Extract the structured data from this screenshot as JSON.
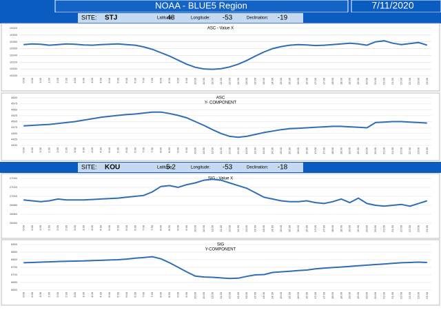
{
  "header": {
    "title": "NOAA - BLUE5 Region",
    "date": "7/11/2020"
  },
  "labels": {
    "site": "SITE:",
    "latitude": "Latitude:",
    "longitude": "Longitude:",
    "declination": "Declination:"
  },
  "sites": [
    {
      "site": "STJ",
      "latitude": 48,
      "longitude": -53,
      "declination": -19
    },
    {
      "site": "KOU",
      "latitude": 5.2,
      "longitude": -53,
      "declination": -18
    }
  ],
  "chart_data": [
    {
      "type": "line",
      "title": "ASC - Value X",
      "color": "#2e6db4",
      "grid": true,
      "categories": [
        "0:00",
        "0:30",
        "1:00",
        "1:30",
        "2:00",
        "2:30",
        "3:00",
        "3:30",
        "4:00",
        "4:30",
        "5:00",
        "5:30",
        "6:00",
        "6:30",
        "7:00",
        "7:30",
        "8:00",
        "8:30",
        "9:00",
        "9:30",
        "10:00",
        "10:30",
        "11:00",
        "11:30",
        "12:00",
        "12:30",
        "13:00",
        "13:30",
        "14:00",
        "14:30",
        "15:00",
        "15:30",
        "16:00",
        "16:30",
        "17:00",
        "17:30",
        "18:00",
        "18:30",
        "19:00",
        "19:30",
        "20:00",
        "20:30",
        "21:00",
        "21:30",
        "22:00",
        "22:30",
        "23:00",
        "23:30"
      ],
      "values": [
        19272,
        19274,
        19273,
        19270,
        19272,
        19274,
        19273,
        19271,
        19270,
        19272,
        19273,
        19274,
        19272,
        19270,
        19265,
        19258,
        19248,
        19238,
        19226,
        19214,
        19205,
        19200,
        19199,
        19201,
        19206,
        19214,
        19225,
        19238,
        19250,
        19260,
        19266,
        19270,
        19272,
        19271,
        19269,
        19270,
        19272,
        19274,
        19276,
        19274,
        19270,
        19280,
        19283,
        19276,
        19272,
        19275,
        19278,
        19270
      ],
      "ylim": [
        19180,
        19320
      ],
      "yticks": [
        19180,
        19200,
        19220,
        19240,
        19260,
        19280,
        19300,
        19320
      ]
    },
    {
      "type": "line",
      "title": "ASC",
      "subtitle": "Y- COMPONENT",
      "color": "#2e6db4",
      "grid": true,
      "categories": [
        "0:00",
        "0:30",
        "1:00",
        "1:30",
        "2:00",
        "2:30",
        "3:00",
        "3:30",
        "4:00",
        "4:30",
        "5:00",
        "5:30",
        "6:00",
        "6:30",
        "7:00",
        "7:30",
        "8:00",
        "8:30",
        "9:00",
        "9:30",
        "10:00",
        "10:30",
        "11:00",
        "11:30",
        "12:00",
        "12:30",
        "13:00",
        "13:30",
        "14:00",
        "14:30",
        "15:00",
        "15:30",
        "16:00",
        "16:30",
        "17:00",
        "17:30",
        "18:00",
        "18:30",
        "19:00",
        "19:30",
        "20:00",
        "20:30",
        "21:00",
        "21:30",
        "22:00",
        "22:30",
        "23:00",
        "23:30"
      ],
      "values": [
        4482,
        4484,
        4486,
        4488,
        4492,
        4496,
        4500,
        4506,
        4512,
        4518,
        4522,
        4526,
        4530,
        4532,
        4536,
        4540,
        4540,
        4534,
        4526,
        4516,
        4500,
        4484,
        4466,
        4450,
        4438,
        4434,
        4438,
        4446,
        4454,
        4460,
        4466,
        4470,
        4472,
        4474,
        4476,
        4478,
        4480,
        4480,
        4478,
        4476,
        4474,
        4496,
        4498,
        4500,
        4500,
        4498,
        4496,
        4494
      ],
      "ylim": [
        4400,
        4600
      ],
      "yticks": [
        4400,
        4425,
        4450,
        4475,
        4500,
        4525,
        4550,
        4575,
        4600
      ]
    },
    {
      "type": "line",
      "title": "SIG - Value X",
      "color": "#2e6db4",
      "grid": true,
      "categories": [
        "0:00",
        "0:30",
        "1:00",
        "1:30",
        "2:00",
        "2:30",
        "3:00",
        "3:30",
        "4:00",
        "4:30",
        "5:00",
        "5:30",
        "6:00",
        "6:30",
        "7:00",
        "7:30",
        "8:00",
        "8:30",
        "9:00",
        "9:30",
        "10:00",
        "10:30",
        "11:00",
        "11:30",
        "12:00",
        "12:30",
        "13:00",
        "13:30",
        "14:00",
        "14:30",
        "15:00",
        "15:30",
        "16:00",
        "16:30",
        "17:00",
        "17:30",
        "18:00",
        "18:30",
        "19:00",
        "19:30",
        "20:00",
        "20:30",
        "21:00",
        "21:30",
        "22:00",
        "22:30",
        "23:00",
        "23:30"
      ],
      "values": [
        26992,
        26990,
        26988,
        26990,
        26994,
        26992,
        26992,
        26992,
        26993,
        26994,
        26995,
        26996,
        26998,
        27000,
        27002,
        27010,
        27022,
        27024,
        27020,
        27026,
        27030,
        27036,
        27038,
        27036,
        27030,
        27024,
        27018,
        27008,
        26998,
        26994,
        26990,
        26988,
        26988,
        26990,
        26986,
        26984,
        26988,
        26994,
        26986,
        26996,
        26984,
        26980,
        26978,
        26980,
        26982,
        26978,
        26984,
        26990
      ],
      "ylim": [
        26940,
        27040
      ],
      "yticks": [
        26940,
        26960,
        26980,
        27000,
        27020,
        27040
      ]
    },
    {
      "type": "line",
      "title": "SIG",
      "subtitle": "Y-COMPONENT",
      "color": "#2e6db4",
      "grid": true,
      "categories": [
        "0:00",
        "0:30",
        "1:00",
        "1:30",
        "2:00",
        "2:30",
        "3:00",
        "3:30",
        "4:00",
        "4:30",
        "5:00",
        "5:30",
        "6:00",
        "6:30",
        "7:00",
        "7:30",
        "8:00",
        "8:30",
        "9:00",
        "9:30",
        "10:00",
        "10:30",
        "11:00",
        "11:30",
        "12:00",
        "12:30",
        "13:00",
        "13:30",
        "14:00",
        "14:30",
        "15:00",
        "15:30",
        "16:00",
        "16:30",
        "17:00",
        "17:30",
        "18:00",
        "18:30",
        "19:00",
        "19:30",
        "20:00",
        "20:30",
        "21:00",
        "21:30",
        "22:00",
        "22:30",
        "23:00",
        "23:30"
      ],
      "values": [
        6780,
        6782,
        6784,
        6786,
        6788,
        6790,
        6791,
        6792,
        6794,
        6796,
        6798,
        6800,
        6804,
        6810,
        6814,
        6820,
        6806,
        6780,
        6750,
        6720,
        6692,
        6686,
        6684,
        6680,
        6676,
        6678,
        6690,
        6700,
        6702,
        6716,
        6720,
        6724,
        6728,
        6732,
        6740,
        6744,
        6748,
        6752,
        6756,
        6760,
        6764,
        6768,
        6772,
        6776,
        6780,
        6782,
        6784,
        6782
      ],
      "ylim": [
        6600,
        6900
      ],
      "yticks": [
        6600,
        6650,
        6700,
        6750,
        6800,
        6850,
        6900
      ]
    }
  ]
}
